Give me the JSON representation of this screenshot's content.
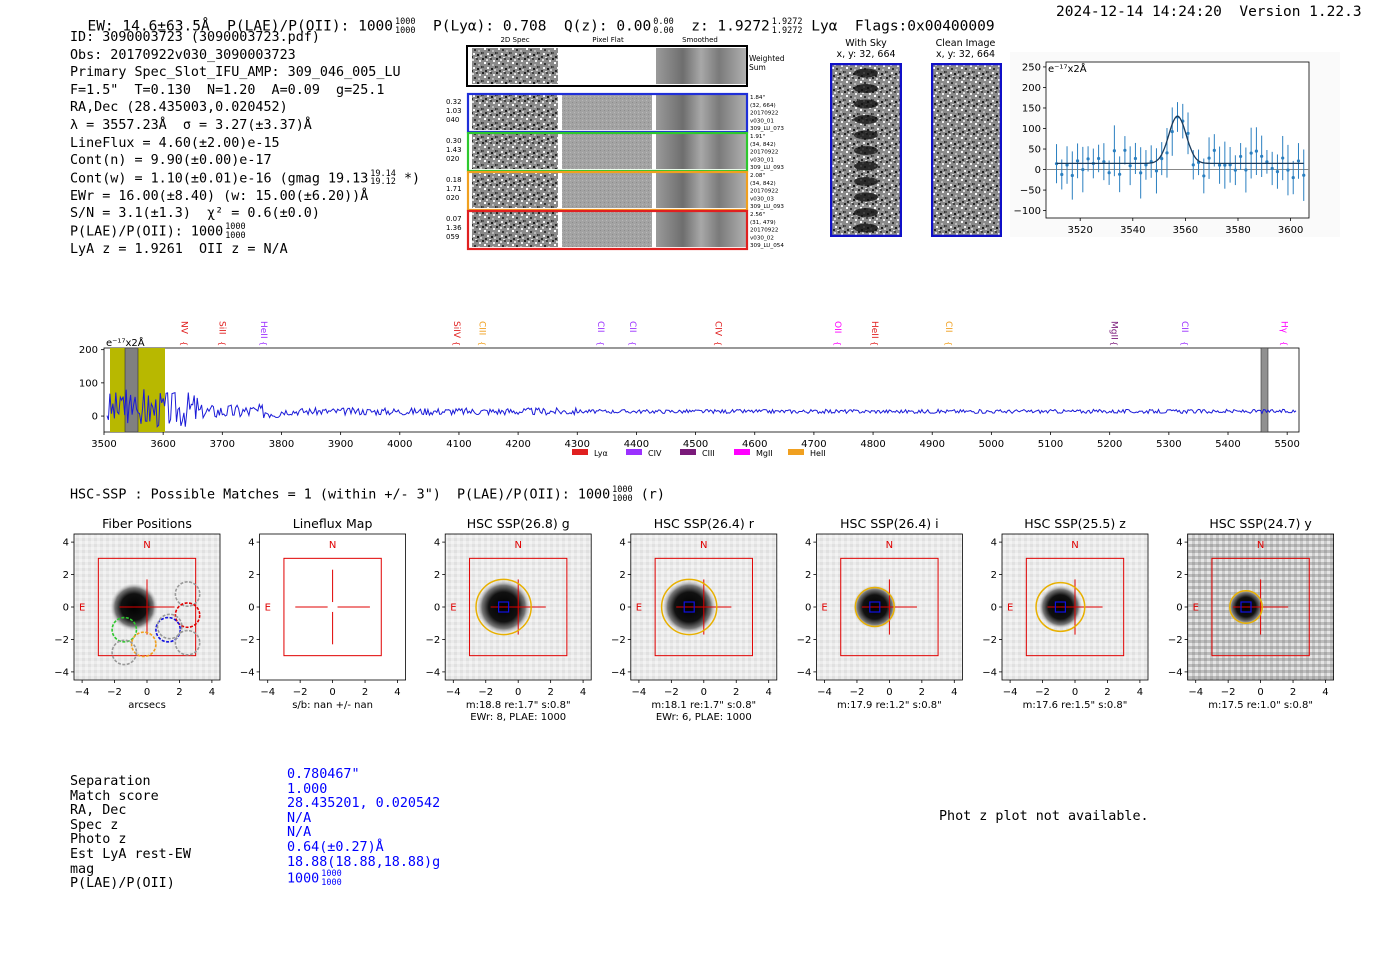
{
  "header": {
    "ew": "EW: 14.6±63.5Å",
    "plae_label": "P(LAE)/P(OII): 1000",
    "plae_hi": "1000",
    "plae_lo": "1000",
    "plya": "P(Lyα): 0.708",
    "qz": "Q(z): 0.00",
    "qz_hi": "0.00",
    "qz_lo": "0.00",
    "z": "z: 1.9272",
    "z_hi": "1.9272",
    "z_lo": "1.9272",
    "lya_flags": "Lyα  Flags:0x00400009",
    "datetime": "2024-12-14 14:24:20",
    "version": "Version 1.22.3"
  },
  "info": {
    "id": "ID: 3090003723 (3090003723.pdf)",
    "obs": "Obs: 20170922v030_3090003723",
    "primary": "Primary Spec_Slot_IFU_AMP: 309_046_005_LU",
    "fparams": "F=1.5\"  T=0.130  N=1.20  A=0.09  g=25.1",
    "radec": "RA,Dec (28.435003,0.020452)",
    "lambda": "λ = 3557.23Å  σ = 3.27(±3.37)Å",
    "lineflux": "LineFlux = 4.60(±2.00)e-15",
    "contn": "Cont(n) = 9.90(±0.00)e-17",
    "contw_pre": "Cont(w) = 1.10(±0.01)e-16 (gmag 19.13",
    "contw_hi": "19.14",
    "contw_lo": "19.12",
    "contw_post": " *)",
    "ewr": "EWr = 16.00(±8.40) (w: 15.00(±6.20))Å",
    "sn": "S/N = 3.1(±1.3)  χ² = 0.6(±0.0)",
    "plae_pre": "P(LAE)/P(OII): 1000",
    "plae_hi": "1000",
    "plae_lo": "1000",
    "lyaz": "LyA z = 1.9261  OII z = N/A"
  },
  "spec2d": {
    "col_headers": [
      "2D Spec",
      "Pixel Flat",
      "Smoothed"
    ],
    "weighted_sum": [
      "Weighted",
      "Sum"
    ],
    "rows": [
      {
        "left": [
          "0.32",
          "1.03",
          "040"
        ],
        "right": [
          "1.84\"",
          "(32, 664)",
          "20170922",
          "v030_01",
          "309_LU_073"
        ],
        "color": "#1f2fd8"
      },
      {
        "left": [
          "0.30",
          "1.43",
          "020"
        ],
        "right": [
          "1.91\"",
          "(34, 842)",
          "20170922",
          "v030_01",
          "309_LU_093"
        ],
        "color": "#2ec82e"
      },
      {
        "left": [
          "0.18",
          "1.71",
          "020"
        ],
        "right": [
          "2.08\"",
          "(34, 842)",
          "20170922",
          "v030_03",
          "309_LU_093"
        ],
        "color": "#f0a020"
      },
      {
        "left": [
          "0.07",
          "1.36",
          "059"
        ],
        "right": [
          "2.56\"",
          "(31, 479)",
          "20170922",
          "v030_02",
          "309_LU_054"
        ],
        "color": "#e02020"
      }
    ]
  },
  "cutouts": {
    "with_sky": {
      "title": "With Sky",
      "coords": "x, y: 32, 664"
    },
    "clean": {
      "title": "Clean Image",
      "coords": "x, y: 32, 664"
    }
  },
  "zoom_chart": {
    "unit": "e⁻¹⁷x2Å",
    "yticks": [
      "250",
      "200",
      "150",
      "100",
      "50",
      "0",
      "−50",
      "−100"
    ],
    "xticks": [
      "3520",
      "3540",
      "3560",
      "3580",
      "3600"
    ]
  },
  "full_spectrum": {
    "unit": "e⁻¹⁷x2Å",
    "yticks": [
      "200",
      "100",
      "0"
    ],
    "xticks": [
      "3500",
      "3600",
      "3700",
      "3800",
      "3900",
      "4000",
      "4100",
      "4200",
      "4300",
      "4400",
      "4500",
      "4600",
      "4700",
      "4800",
      "4900",
      "5000",
      "5100",
      "5200",
      "5300",
      "5400",
      "5500"
    ],
    "lines": [
      {
        "label": "NV",
        "wave": 3631,
        "color": "#e02020"
      },
      {
        "label": "SiII",
        "wave": 3695,
        "color": "#e02020"
      },
      {
        "label": "HeII",
        "wave": 3765,
        "color": "#9b30ff"
      },
      {
        "label": "SiIV",
        "wave": 4092,
        "color": "#e02020"
      },
      {
        "label": "CIII",
        "wave": 4135,
        "color": "#f0a020"
      },
      {
        "label": "CII",
        "wave": 4335,
        "color": "#9b30ff"
      },
      {
        "label": "CII",
        "wave": 4389,
        "color": "#9b30ff"
      },
      {
        "label": "CIV",
        "wave": 4534,
        "color": "#e02020"
      },
      {
        "label": "OII",
        "wave": 4736,
        "color": "#ff00ff"
      },
      {
        "label": "HeII",
        "wave": 4798,
        "color": "#e02020"
      },
      {
        "label": "CII",
        "wave": 4923,
        "color": "#f0a020"
      },
      {
        "label": "MgII",
        "wave": 5203,
        "color": "#7a1a7a"
      },
      {
        "label": "CII",
        "wave": 5322,
        "color": "#9b30ff"
      },
      {
        "label": "Hγ",
        "wave": 5490,
        "color": "#ff00ff"
      }
    ],
    "legend": [
      {
        "label": "Lyα",
        "color": "#e02020"
      },
      {
        "label": "CIV",
        "color": "#9b30ff"
      },
      {
        "label": "CIII",
        "color": "#7a1a7a"
      },
      {
        "label": "MgII",
        "color": "#ff00ff"
      },
      {
        "label": "HeII",
        "color": "#f0a020"
      }
    ]
  },
  "hsc": {
    "title_pre": "HSC-SSP : Possible Matches = 1 (within +/- 3\")  P(LAE)/P(OII): 1000",
    "title_hi": "1000",
    "title_lo": "1000",
    "title_post": " (r)",
    "panels": [
      {
        "title": "Fiber Positions",
        "sub1": "arcsecs",
        "sub2": ""
      },
      {
        "title": "Lineflux Map",
        "sub1": "s/b: nan +/- nan",
        "sub2": ""
      },
      {
        "title": "HSC SSP(26.8) g",
        "sub1": "m:18.8  re:1.7\"  s:0.8\"",
        "sub2": "EWr: 8, PLAE: 1000"
      },
      {
        "title": "HSC SSP(26.4) r",
        "sub1": "m:18.1  re:1.7\"  s:0.8\"",
        "sub2": "EWr: 6, PLAE: 1000"
      },
      {
        "title": "HSC SSP(26.4) i",
        "sub1": "m:17.9  re:1.2\"  s:0.8\"",
        "sub2": ""
      },
      {
        "title": "HSC SSP(25.5) z",
        "sub1": "m:17.6  re:1.5\"  s:0.8\"",
        "sub2": ""
      },
      {
        "title": "HSC SSP(24.7) y",
        "sub1": "m:17.5  re:1.0\"  s:0.8\"",
        "sub2": ""
      }
    ],
    "ticks": [
      "4",
      "2",
      "0",
      "−2",
      "−4"
    ],
    "xticks": [
      "−4",
      "−2",
      "0",
      "2",
      "4"
    ],
    "north": "N",
    "east": "E"
  },
  "match_table": {
    "keys": [
      "Separation",
      "Match score",
      "RA, Dec",
      "Spec z",
      "Photo z",
      "Est LyA rest-EW",
      "mag",
      "P(LAE)/P(OII)"
    ],
    "vals": [
      "0.780467\"",
      "1.000",
      "28.435201, 0.020542",
      "N/A",
      "N/A",
      "0.64(±0.27)Å",
      "18.88(18.88,18.88)g",
      "1000"
    ],
    "plae_hi": "1000",
    "plae_lo": "1000"
  },
  "photz_note": "Phot z plot not available."
}
